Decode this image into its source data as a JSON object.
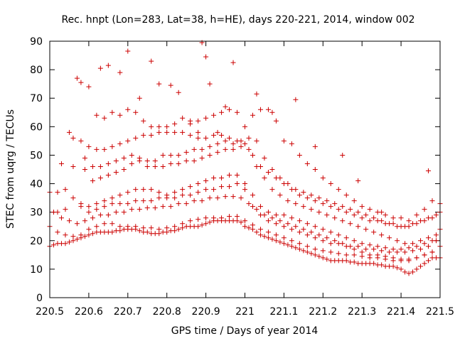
{
  "chart_data": {
    "type": "scatter",
    "title": "Rec. hnpt (Lon=283, Lat=38, h=HE), days 220-221, 2014, window 002",
    "xlabel": "GPS time / Days of year 2014",
    "ylabel": "STEC from uqrg / TECUs",
    "xlim": [
      220.5,
      221.5
    ],
    "ylim": [
      0,
      90
    ],
    "x_ticks": [
      "220.5",
      "220.6",
      "220.7",
      "220.8",
      "220.9",
      "221",
      "221.1",
      "221.2",
      "221.3",
      "221.4",
      "221.5"
    ],
    "y_ticks": [
      "0",
      "10",
      "20",
      "30",
      "40",
      "50",
      "60",
      "70",
      "80",
      "90"
    ],
    "grid": false,
    "legend": "none",
    "marker": "+",
    "color": "#cc0000",
    "series": [
      {
        "x": [
          220.5,
          220.51,
          220.52,
          220.53,
          220.54,
          220.55,
          220.56,
          220.57,
          220.58,
          220.59,
          220.6,
          220.61,
          220.62,
          220.63,
          220.64,
          220.65,
          220.66,
          220.67,
          220.68,
          220.69,
          220.7,
          220.71,
          220.72,
          220.73,
          220.74,
          220.75,
          220.76,
          220.77,
          220.78,
          220.79,
          220.8,
          220.81,
          220.82,
          220.83,
          220.84,
          220.85,
          220.86,
          220.87,
          220.88,
          220.89,
          220.9,
          220.91,
          220.92,
          220.93,
          220.94,
          220.95,
          220.96,
          220.97,
          220.98,
          220.99,
          221.0,
          221.01,
          221.02,
          221.03,
          221.04,
          221.05,
          221.06,
          221.07,
          221.08,
          221.09,
          221.1,
          221.11,
          221.12,
          221.13,
          221.14,
          221.15,
          221.16,
          221.17,
          221.18,
          221.19,
          221.2,
          221.21,
          221.22,
          221.23,
          221.24,
          221.25,
          221.26,
          221.27,
          221.28,
          221.29,
          221.3,
          221.31,
          221.32,
          221.33,
          221.34,
          221.35,
          221.36,
          221.37,
          221.38,
          221.39,
          221.4,
          221.41,
          221.42,
          221.43,
          221.44,
          221.45,
          221.46,
          221.47,
          221.48,
          221.49,
          221.5
        ],
        "y": [
          18,
          18.5,
          19,
          19,
          19,
          19.5,
          20,
          20.5,
          21,
          21.5,
          22,
          22.5,
          23,
          23,
          23,
          23,
          23,
          23.5,
          23.5,
          24,
          24,
          24,
          24,
          23.5,
          23,
          23,
          22.5,
          22.5,
          22.5,
          23,
          23,
          23.5,
          23.5,
          24,
          24.5,
          25,
          25,
          25,
          25,
          25.5,
          26,
          26.5,
          27,
          27,
          27,
          27,
          27,
          27,
          27,
          26.5,
          25,
          24.5,
          24,
          23,
          22,
          21.5,
          21,
          20.5,
          20,
          19.5,
          19,
          18.5,
          18,
          17.5,
          17,
          16.5,
          16,
          15.5,
          15,
          14.5,
          14,
          13.5,
          13,
          13,
          13,
          13,
          13,
          12.5,
          12.5,
          12,
          12,
          12,
          12,
          12,
          11.5,
          11.5,
          11,
          11,
          11,
          10.5,
          10,
          9,
          8.5,
          9,
          10,
          11,
          12,
          13,
          14,
          14,
          14
        ]
      },
      {
        "x": [
          220.5,
          220.52,
          220.54,
          220.56,
          220.58,
          220.6,
          220.62,
          220.64,
          220.66,
          220.68,
          220.7,
          220.72,
          220.74,
          220.76,
          220.78,
          220.8,
          220.82,
          220.84,
          220.86,
          220.88,
          220.9,
          220.92,
          220.94,
          220.96,
          220.98,
          221.0,
          221.02,
          221.04,
          221.06,
          221.08,
          221.1,
          221.12,
          221.14,
          221.16,
          221.18,
          221.2,
          221.22,
          221.24,
          221.26,
          221.28,
          221.3,
          221.32,
          221.34,
          221.36,
          221.38,
          221.4,
          221.42,
          221.44,
          221.46,
          221.48,
          221.5
        ],
        "y": [
          25,
          23,
          22,
          21.5,
          22,
          24,
          25,
          26,
          26,
          25,
          25,
          25,
          24.5,
          24.5,
          24,
          24.5,
          25,
          26,
          27,
          27.5,
          28,
          28,
          28,
          28.5,
          28.5,
          27,
          25.5,
          24,
          23,
          22,
          21,
          20,
          19,
          18,
          17,
          16.5,
          16,
          15.5,
          15,
          15,
          14.5,
          14,
          14,
          13.5,
          13,
          13,
          13.5,
          14,
          15,
          16,
          18
        ]
      },
      {
        "x": [
          220.51,
          220.53,
          220.55,
          220.57,
          220.59,
          220.61,
          220.63,
          220.65,
          220.67,
          220.69,
          220.71,
          220.73,
          220.75,
          220.77,
          220.79,
          220.81,
          220.83,
          220.85,
          220.87,
          220.89,
          220.91,
          220.93,
          220.95,
          220.97,
          220.99,
          221.01,
          221.03,
          221.05,
          221.07,
          221.09,
          221.11,
          221.13,
          221.15,
          221.17,
          221.19,
          221.21,
          221.23,
          221.25,
          221.27,
          221.29,
          221.31,
          221.33,
          221.35,
          221.37,
          221.39,
          221.41,
          221.43,
          221.45,
          221.47,
          221.49
        ],
        "y": [
          30,
          28,
          27,
          26,
          27,
          28,
          29,
          29,
          30,
          30,
          31,
          31,
          31.5,
          31.5,
          32,
          32,
          33,
          33,
          34,
          34,
          35,
          35,
          35.5,
          35.5,
          35,
          33,
          31,
          29,
          28,
          27,
          26,
          25,
          24,
          23,
          22,
          21,
          20,
          19,
          18,
          18,
          17,
          17,
          16.5,
          16,
          16,
          16,
          16.5,
          17,
          18,
          20
        ]
      },
      {
        "x": [
          220.5,
          220.52,
          220.54,
          220.56,
          220.58,
          220.6,
          220.62,
          220.64,
          220.66,
          220.68,
          220.7,
          220.72,
          220.74,
          220.76,
          220.78,
          220.8,
          220.82,
          220.84,
          220.86,
          220.88,
          220.9,
          220.92,
          220.94,
          220.96,
          220.98,
          221.0,
          221.02,
          221.04,
          221.06,
          221.08,
          221.1,
          221.12,
          221.14,
          221.16,
          221.18,
          221.2,
          221.22,
          221.24,
          221.26,
          221.28,
          221.3,
          221.32,
          221.34,
          221.36,
          221.38,
          221.4,
          221.42,
          221.44,
          221.46,
          221.48,
          221.5
        ],
        "y": [
          37,
          37,
          38,
          35,
          33,
          32,
          33,
          34,
          35,
          36,
          37,
          38,
          38,
          38,
          37,
          36,
          37,
          38,
          39,
          40,
          41,
          42,
          42,
          43,
          43,
          40,
          36,
          32,
          30,
          29,
          29,
          28,
          27,
          26,
          25,
          24,
          23,
          22,
          21,
          20,
          19,
          18.5,
          18,
          17.5,
          17,
          17,
          17.5,
          18,
          19,
          20,
          24
        ]
      },
      {
        "x": [
          220.53,
          220.56,
          220.59,
          220.61,
          220.63,
          220.65,
          220.67,
          220.69,
          220.71,
          220.73,
          220.75,
          220.77,
          220.79,
          220.81,
          220.83,
          220.85,
          220.87,
          220.89,
          220.91,
          220.93,
          220.95,
          220.97,
          220.99,
          221.01,
          221.03,
          221.05,
          221.07,
          221.09,
          221.11,
          221.13,
          221.15,
          221.17,
          221.19,
          221.21,
          221.23,
          221.25,
          221.27,
          221.29,
          221.31,
          221.33,
          221.35,
          221.37,
          221.39,
          221.41,
          221.43,
          221.45,
          221.47,
          221.49
        ],
        "y": [
          47,
          46,
          45,
          41,
          42,
          43,
          44,
          45,
          47,
          48,
          46,
          46,
          46,
          47,
          47,
          48,
          48,
          49,
          50,
          51,
          52,
          52,
          53,
          52,
          46,
          42,
          38,
          36,
          34,
          33,
          32,
          31,
          30,
          29,
          28,
          27,
          26,
          25,
          24,
          23,
          22,
          21,
          20,
          19,
          19,
          20,
          21,
          22
        ]
      },
      {
        "x": [
          220.55,
          220.58,
          220.6,
          220.62,
          220.64,
          220.66,
          220.68,
          220.7,
          220.72,
          220.74,
          220.76,
          220.78,
          220.8,
          220.82,
          220.84,
          220.86,
          220.88,
          220.9,
          220.92,
          220.94,
          220.96,
          220.98,
          221.0,
          221.02,
          221.04,
          221.06,
          221.08,
          221.1,
          221.12,
          221.14,
          221.16,
          221.18,
          221.2,
          221.22,
          221.24,
          221.26,
          221.28,
          221.3,
          221.32,
          221.34,
          221.36,
          221.38,
          221.4,
          221.42,
          221.44,
          221.46,
          221.48,
          221.5
        ],
        "y": [
          58,
          55,
          53,
          52,
          52,
          53,
          54,
          55,
          56,
          57,
          57,
          58,
          58,
          58,
          58,
          57,
          56,
          56,
          57,
          57,
          56,
          55,
          54,
          50,
          46,
          44,
          42,
          40,
          38,
          36,
          35,
          34,
          33,
          32,
          31,
          30,
          29,
          28,
          27,
          27,
          26,
          26,
          25,
          25,
          26,
          27,
          28,
          30
        ]
      },
      {
        "x": [
          220.56,
          220.59,
          220.61,
          220.63,
          220.65,
          220.67,
          220.69,
          220.71,
          220.73,
          220.75,
          220.77,
          220.79,
          220.81,
          220.83,
          220.85,
          220.87,
          220.89,
          220.91,
          220.93,
          220.95,
          220.97,
          220.99,
          221.01,
          221.03,
          221.05,
          221.07,
          221.09,
          221.11,
          221.13,
          221.15,
          221.17,
          221.19,
          221.21,
          221.23,
          221.25,
          221.27,
          221.29,
          221.31,
          221.33,
          221.35,
          221.37,
          221.39,
          221.41,
          221.43,
          221.45,
          221.47,
          221.49
        ],
        "y": [
          56,
          49,
          46,
          46,
          47,
          48,
          49,
          50,
          49,
          48,
          48,
          50,
          50,
          50,
          51,
          52,
          52,
          53,
          54,
          55,
          54,
          55,
          56,
          55,
          49,
          45,
          42,
          40,
          38,
          37,
          36,
          35,
          34,
          33,
          32,
          31,
          30,
          29,
          28,
          27,
          26,
          25,
          25,
          26,
          27,
          28,
          29
        ]
      },
      {
        "x": [
          220.57,
          220.6,
          220.62,
          220.64,
          220.66,
          220.68,
          220.7,
          220.72,
          220.74,
          220.76,
          220.78,
          220.8,
          220.82,
          220.84,
          220.86,
          220.88,
          220.9,
          220.92,
          220.94,
          220.96,
          220.98,
          221.0,
          221.02,
          221.04,
          221.06,
          221.08,
          221.1,
          221.12,
          221.14,
          221.16,
          221.18,
          221.2,
          221.22,
          221.24,
          221.26,
          221.28,
          221.3,
          221.32,
          221.34,
          221.36,
          221.38,
          221.4,
          221.42,
          221.44,
          221.46,
          221.48,
          221.5
        ],
        "y": [
          77,
          74,
          64,
          63,
          65,
          64,
          66,
          65,
          62,
          60,
          60,
          60,
          61,
          63,
          62,
          62,
          63,
          64,
          65,
          66,
          65,
          60,
          64,
          66,
          66,
          62,
          55,
          54,
          50,
          47,
          45,
          42,
          40,
          38,
          36,
          34,
          32,
          31,
          30,
          29,
          28,
          28,
          27,
          29,
          31,
          34,
          33
        ]
      },
      {
        "x": [
          220.58,
          220.63,
          220.65,
          220.68,
          220.7,
          220.73,
          220.76,
          220.78,
          220.81,
          220.83,
          220.86,
          220.88,
          220.89,
          220.9,
          220.91,
          220.93,
          220.95,
          220.97,
          221.03,
          221.07,
          221.13,
          221.18,
          221.25,
          221.29,
          221.35,
          221.47
        ],
        "y": [
          75.5,
          80.5,
          81.5,
          79,
          86.5,
          70,
          83,
          75,
          74.5,
          72,
          61,
          58,
          89.5,
          84.5,
          75,
          58,
          67,
          82.5,
          71.5,
          65,
          69.5,
          53,
          50,
          41,
          30,
          44.5
        ]
      },
      {
        "x": [
          220.52,
          220.54,
          220.58,
          220.6,
          220.62,
          220.64,
          220.66,
          220.68,
          220.7,
          220.72,
          220.74,
          220.76,
          220.78,
          220.8,
          220.82,
          220.84,
          220.86,
          220.88,
          220.9,
          220.92,
          220.94,
          220.96,
          220.98,
          221.0,
          221.02,
          221.04,
          221.06,
          221.08,
          221.1,
          221.12,
          221.14,
          221.16,
          221.18,
          221.2,
          221.22,
          221.24,
          221.26,
          221.28,
          221.3,
          221.32,
          221.34,
          221.36,
          221.38,
          221.4,
          221.42,
          221.44,
          221.46,
          221.48
        ],
        "y": [
          30,
          31,
          32,
          30,
          31,
          32,
          33,
          33,
          33,
          34,
          34,
          34,
          35,
          35,
          35,
          36,
          36,
          37,
          38,
          38,
          39,
          39,
          40,
          38,
          32,
          29,
          27,
          26,
          25,
          24,
          23,
          22,
          21,
          20,
          19,
          19,
          18,
          17,
          16,
          15,
          15,
          14.5,
          14,
          13.5,
          13,
          14,
          15,
          16
        ]
      }
    ]
  }
}
